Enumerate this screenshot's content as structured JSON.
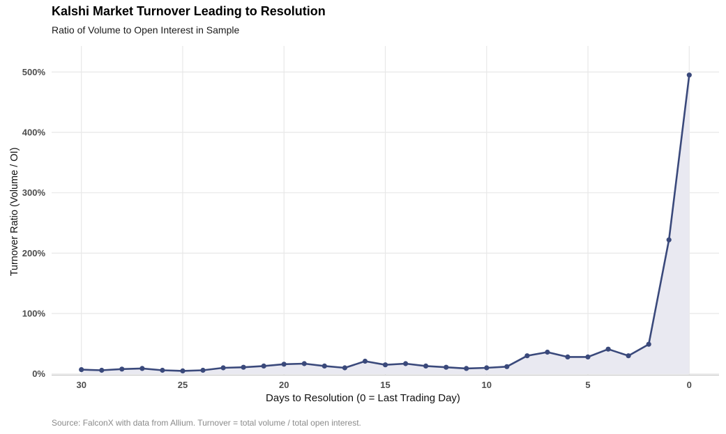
{
  "header": {
    "title": "Kalshi Market Turnover Leading to Resolution",
    "subtitle": "Ratio of Volume to Open Interest in Sample"
  },
  "caption": "Source: FalconX with data from Allium. Turnover = total volume / total open interest.",
  "chart_data": {
    "type": "line",
    "style": "line-with-area-fill-and-point-markers",
    "title": "Kalshi Market Turnover Leading to Resolution",
    "subtitle": "Ratio of Volume to Open Interest in Sample",
    "xlabel": "Days to Resolution (0 = Last Trading Day)",
    "ylabel": "Turnover Ratio (Volume / OI)",
    "x": [
      30,
      29,
      28,
      27,
      26,
      25,
      24,
      23,
      22,
      21,
      20,
      19,
      18,
      17,
      16,
      15,
      14,
      13,
      12,
      11,
      10,
      9,
      8,
      7,
      6,
      5,
      4,
      3,
      2,
      1,
      0
    ],
    "values_pct": [
      7,
      6,
      8,
      9,
      6,
      5,
      6,
      10,
      11,
      13,
      16,
      17,
      13,
      10,
      21,
      15,
      17,
      13,
      11,
      9,
      10,
      12,
      30,
      36,
      28,
      28,
      41,
      30,
      49,
      222,
      495
    ],
    "x_ticks": [
      "30",
      "25",
      "20",
      "15",
      "10",
      "5",
      "0"
    ],
    "y_ticks": [
      "0%",
      "100%",
      "200%",
      "300%",
      "400%",
      "500%"
    ],
    "x_axis_reversed": true,
    "xlim": [
      31.5,
      -1.5
    ],
    "ylim": [
      0,
      520
    ],
    "grid": "major-only",
    "legend": "none",
    "colors": {
      "line": "#3a497b",
      "point": "#3a497b",
      "fill": "#e9e9f1",
      "grid": "#e8e8e8",
      "axis_line": "#c9c9c9",
      "tick_label": "#4d4d4d",
      "caption": "#8a8a8a"
    }
  }
}
